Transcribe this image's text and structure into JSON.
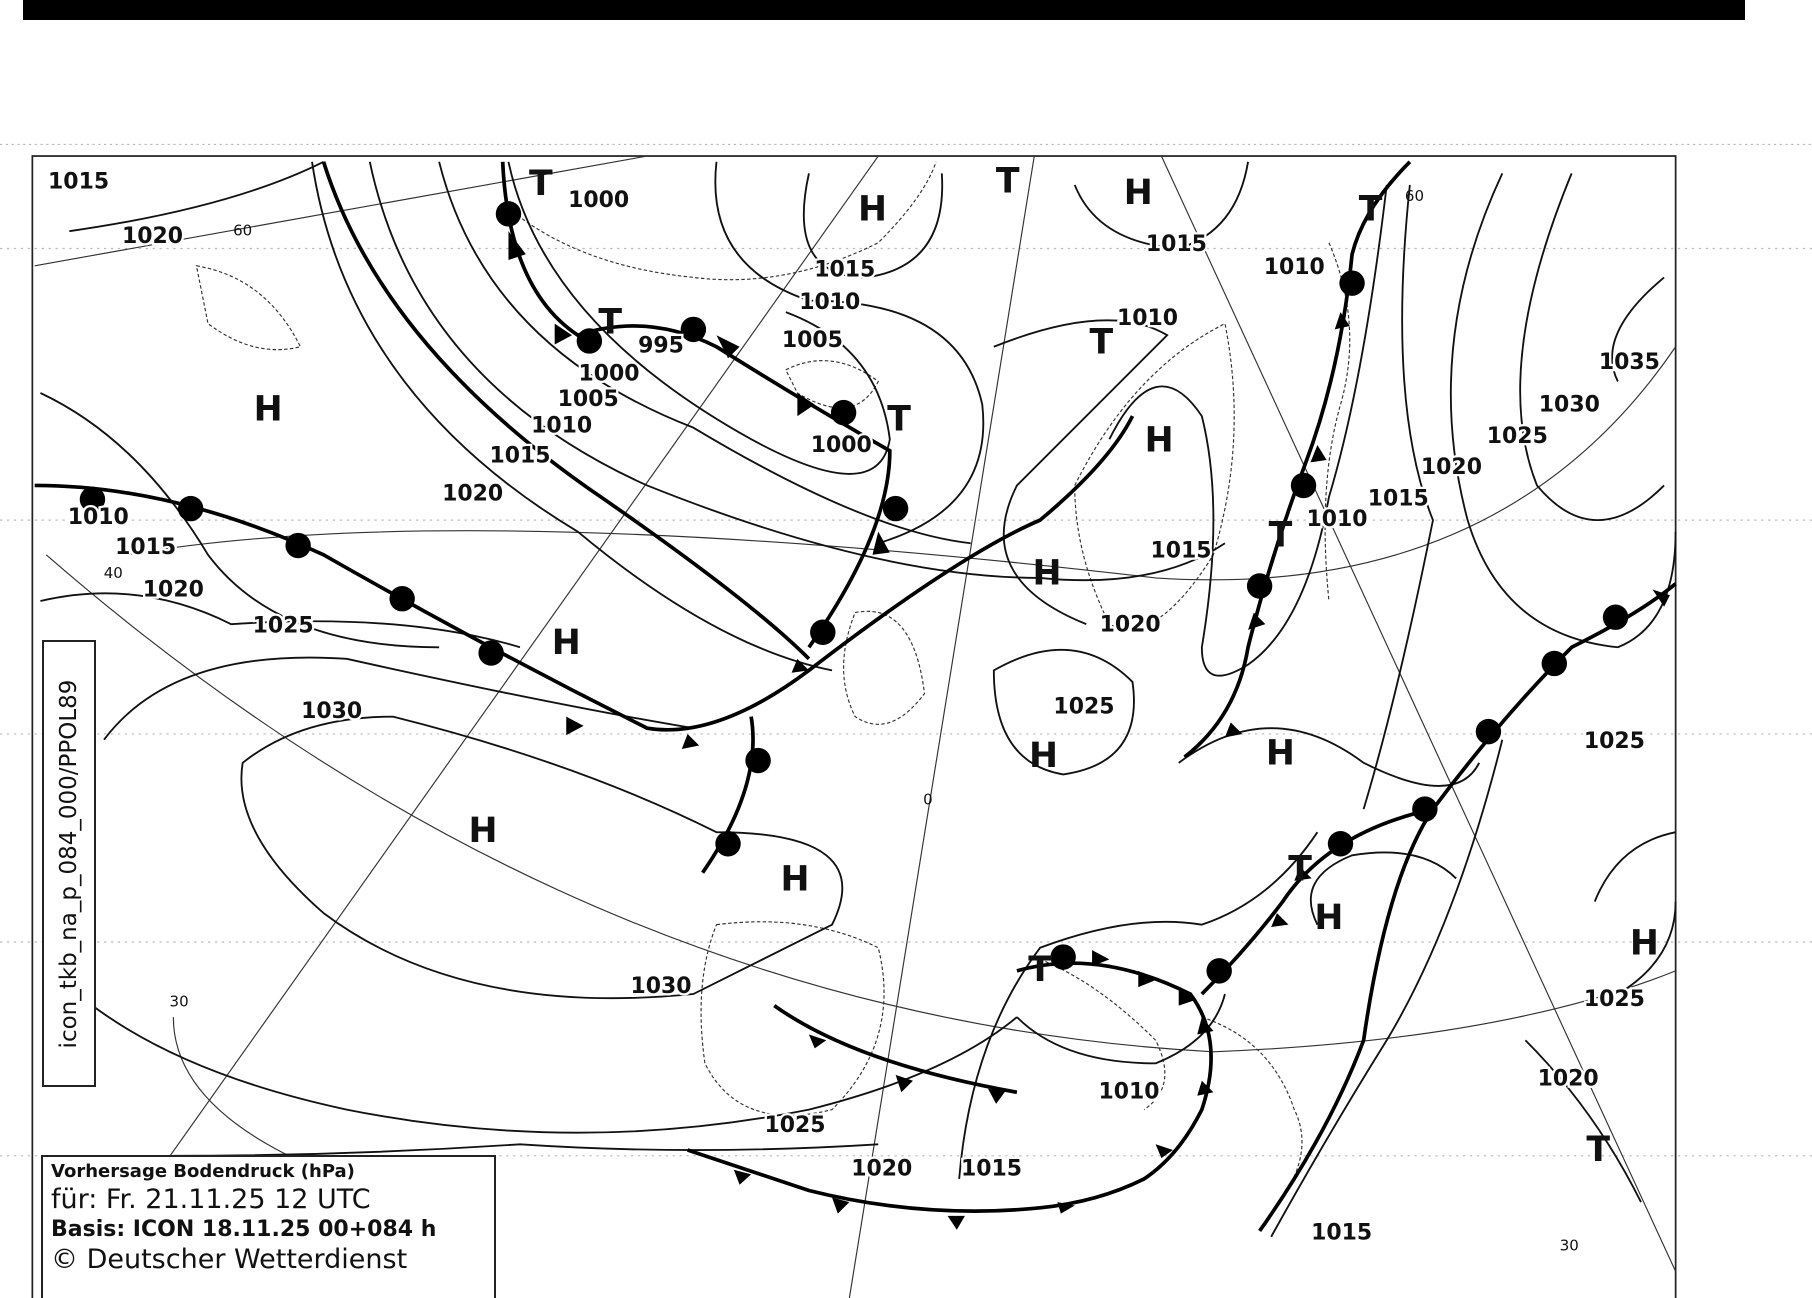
{
  "legend": {
    "title": "Vorhersage Bodendruck (hPa)",
    "valid": "für:  Fr. 21.11.25  12 UTC",
    "basis": "Basis: ICON  18.11.25 00+084 h",
    "copyright": "© Deutscher Wetterdienst"
  },
  "side_label": "icon_tkb_na_p_084_000/PPOL89",
  "map_labels": [
    {
      "text": "1015",
      "kind": "isobar"
    },
    {
      "text": "1020",
      "kind": "isobar"
    },
    {
      "text": "60",
      "kind": "grid"
    },
    {
      "text": "1000",
      "kind": "isobar"
    },
    {
      "text": "T",
      "kind": "low"
    },
    {
      "text": "H",
      "kind": "high"
    },
    {
      "text": "T",
      "kind": "low"
    },
    {
      "text": "H",
      "kind": "high"
    },
    {
      "text": "1015",
      "kind": "isobar"
    },
    {
      "text": "1010",
      "kind": "isobar"
    },
    {
      "text": "T",
      "kind": "low"
    },
    {
      "text": "60",
      "kind": "grid"
    },
    {
      "text": "1015",
      "kind": "isobar"
    },
    {
      "text": "1010",
      "kind": "isobar"
    },
    {
      "text": "T",
      "kind": "low"
    },
    {
      "text": "995",
      "kind": "isobar"
    },
    {
      "text": "1000",
      "kind": "isobar"
    },
    {
      "text": "1005",
      "kind": "isobar"
    },
    {
      "text": "T",
      "kind": "low"
    },
    {
      "text": "1010",
      "kind": "isobar"
    },
    {
      "text": "1005",
      "kind": "isobar"
    },
    {
      "text": "1010",
      "kind": "isobar"
    },
    {
      "text": "1000",
      "kind": "isobar"
    },
    {
      "text": "T",
      "kind": "low"
    },
    {
      "text": "H",
      "kind": "high"
    },
    {
      "text": "1015",
      "kind": "isobar"
    },
    {
      "text": "1020",
      "kind": "isobar"
    },
    {
      "text": "H",
      "kind": "high"
    },
    {
      "text": "1035",
      "kind": "isobar"
    },
    {
      "text": "1030",
      "kind": "isobar"
    },
    {
      "text": "1025",
      "kind": "isobar"
    },
    {
      "text": "1020",
      "kind": "isobar"
    },
    {
      "text": "1015",
      "kind": "isobar"
    },
    {
      "text": "1010",
      "kind": "isobar"
    },
    {
      "text": "T",
      "kind": "low"
    },
    {
      "text": "1010",
      "kind": "isobar"
    },
    {
      "text": "1015",
      "kind": "isobar"
    },
    {
      "text": "1020",
      "kind": "isobar"
    },
    {
      "text": "40",
      "kind": "grid"
    },
    {
      "text": "1015",
      "kind": "isobar"
    },
    {
      "text": "H",
      "kind": "high"
    },
    {
      "text": "1025",
      "kind": "isobar"
    },
    {
      "text": "H",
      "kind": "high"
    },
    {
      "text": "1020",
      "kind": "isobar"
    },
    {
      "text": "1030",
      "kind": "isobar"
    },
    {
      "text": "1025",
      "kind": "isobar"
    },
    {
      "text": "H",
      "kind": "high"
    },
    {
      "text": "H",
      "kind": "high"
    },
    {
      "text": "1025",
      "kind": "isobar"
    },
    {
      "text": "H",
      "kind": "high"
    },
    {
      "text": "H",
      "kind": "high"
    },
    {
      "text": "T",
      "kind": "low"
    },
    {
      "text": "H",
      "kind": "high"
    },
    {
      "text": "H",
      "kind": "high"
    },
    {
      "text": "T",
      "kind": "low"
    },
    {
      "text": "1030",
      "kind": "isobar"
    },
    {
      "text": "1025",
      "kind": "isobar"
    },
    {
      "text": "30",
      "kind": "grid"
    },
    {
      "text": "1010",
      "kind": "isobar"
    },
    {
      "text": "1020",
      "kind": "isobar"
    },
    {
      "text": "1025",
      "kind": "isobar"
    },
    {
      "text": "T",
      "kind": "low"
    },
    {
      "text": "1020",
      "kind": "isobar"
    },
    {
      "text": "1015",
      "kind": "isobar"
    },
    {
      "text": "1015",
      "kind": "isobar"
    },
    {
      "text": "30",
      "kind": "grid"
    },
    {
      "text": "0",
      "kind": "grid"
    }
  ]
}
